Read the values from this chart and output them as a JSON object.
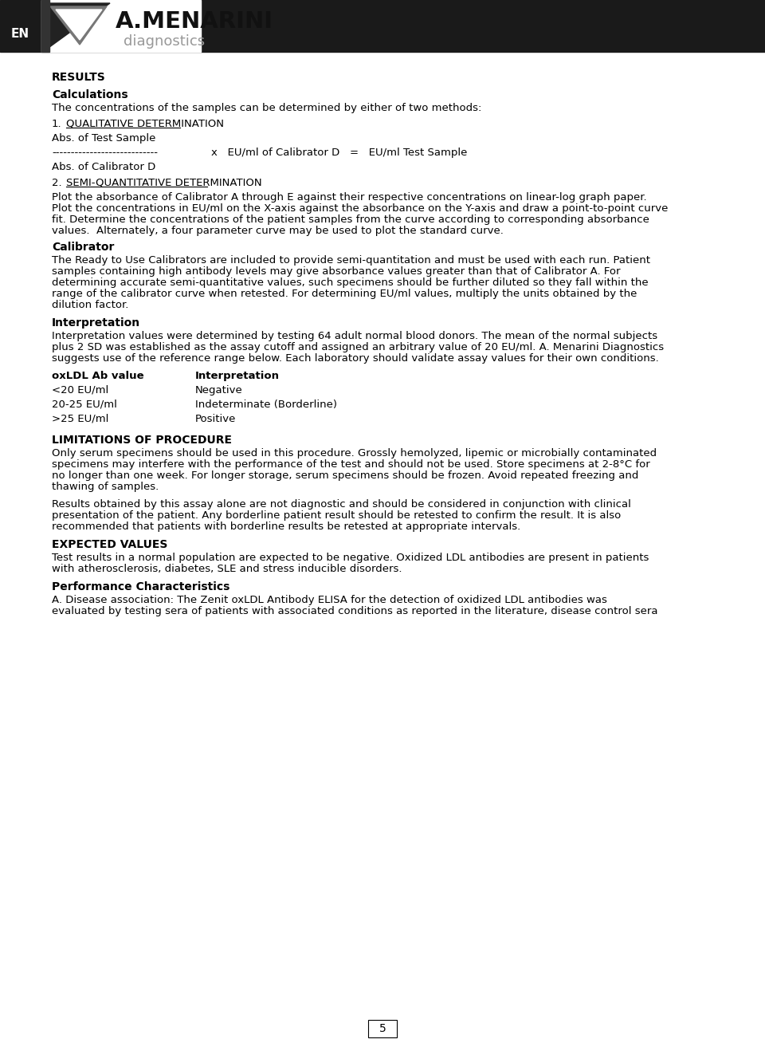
{
  "page_bg": "#ffffff",
  "header_bg": "#1a1a1a",
  "header_text": "EN",
  "logo_text_main": "A.MENARINI",
  "logo_text_sub": "diagnostics",
  "title_results": "RESULTS",
  "title_calculations": "Calculations",
  "para_calculations": "The concentrations of the samples can be determined by either of two methods:",
  "item1_label": "1.",
  "item1_text": "QUALITATIVE DETERMINATION",
  "abs_test_sample": "Abs. of Test Sample",
  "formula_dashes": "----------------------------",
  "formula_middle": "x   EU/ml of Calibrator D   =   EU/ml Test Sample",
  "abs_cal_d": "Abs. of Calibrator D",
  "item2_label": "2.",
  "item2_text": "SEMI-QUANTITATIVE DETERMINATION",
  "lines_semi": [
    "Plot the absorbance of Calibrator A through E against their respective concentrations on linear-log graph paper.",
    "Plot the concentrations in EU/ml on the X-axis against the absorbance on the Y-axis and draw a point-to-point curve",
    "fit. Determine the concentrations of the patient samples from the curve according to corresponding absorbance",
    "values.  Alternately, a four parameter curve may be used to plot the standard curve."
  ],
  "title_calibrator": "Calibrator",
  "cal_lines": [
    "The Ready to Use Calibrators are included to provide semi-quantitation and must be used with each run. Patient",
    "samples containing high antibody levels may give absorbance values greater than that of Calibrator A. For",
    "determining accurate semi-quantitative values, such specimens should be further diluted so they fall within the",
    "range of the calibrator curve when retested. For determining EU/ml values, multiply the units obtained by the",
    "dilution factor."
  ],
  "title_interpretation": "Interpretation",
  "interp_lines": [
    "Interpretation values were determined by testing 64 adult normal blood donors. The mean of the normal subjects",
    "plus 2 SD was established as the assay cutoff and assigned an arbitrary value of 20 EU/ml. A. Menarini Diagnostics",
    "suggests use of the reference range below. Each laboratory should validate assay values for their own conditions."
  ],
  "table_header_col1": "oxLDL Ab value",
  "table_header_col2": "Interpretation",
  "table_rows": [
    [
      "<20 EU/ml",
      "Negative"
    ],
    [
      "20-25 EU/ml",
      "Indeterminate (Borderline)"
    ],
    [
      ">25 EU/ml",
      "Positive"
    ]
  ],
  "title_limitations": "LIMITATIONS OF PROCEDURE",
  "lim_lines1": [
    "Only serum specimens should be used in this procedure. Grossly hemolyzed, lipemic or microbially contaminated",
    "specimens may interfere with the performance of the test and should not be used. Store specimens at 2-8°C for",
    "no longer than one week. For longer storage, serum specimens should be frozen. Avoid repeated freezing and",
    "thawing of samples."
  ],
  "lim_lines2": [
    "Results obtained by this assay alone are not diagnostic and should be considered in conjunction with clinical",
    "presentation of the patient. Any borderline patient result should be retested to confirm the result. It is also",
    "recommended that patients with borderline results be retested at appropriate intervals."
  ],
  "title_expected": "EXPECTED VALUES",
  "exp_lines": [
    "Test results in a normal population are expected to be negative. Oxidized LDL antibodies are present in patients",
    "with atherosclerosis, diabetes, SLE and stress inducible disorders."
  ],
  "title_performance": "Performance Characteristics",
  "perf_lines": [
    "A. Disease association: The Zenit oxLDL Antibody ELISA for the detection of oxidized LDL antibodies was",
    "evaluated by testing sera of patients with associated conditions as reported in the literature, disease control sera"
  ],
  "page_number": "5"
}
